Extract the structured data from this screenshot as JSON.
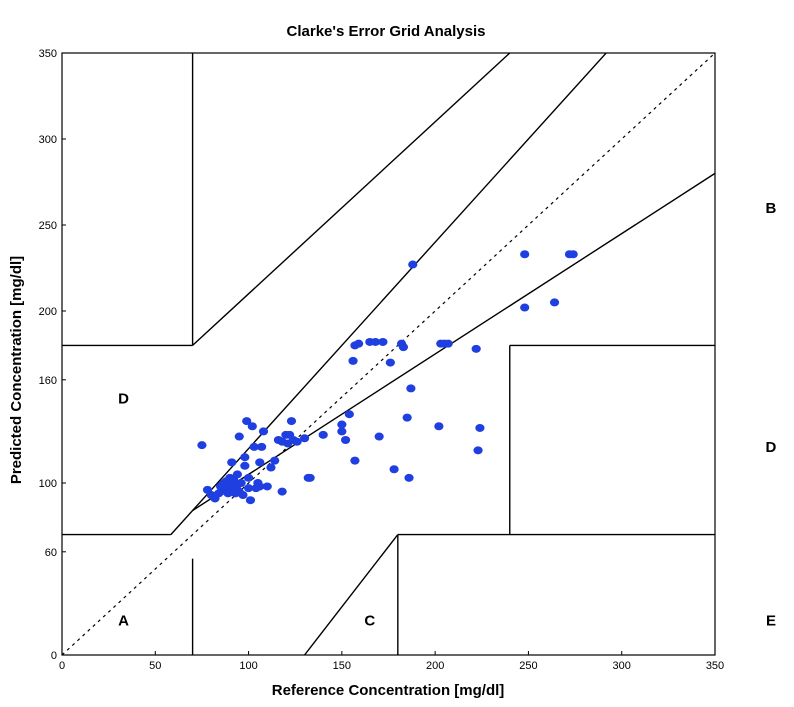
{
  "chart_data": {
    "type": "scatter",
    "title": "Clarke's Error Grid Analysis",
    "xlabel": "Reference Concentration [mg/dl]",
    "ylabel": "Predicted Concentration [mg/dl]",
    "xlim": [
      0,
      350
    ],
    "ylim": [
      0,
      350
    ],
    "x_ticks": [
      0,
      50,
      100,
      150,
      200,
      250,
      300,
      350
    ],
    "y_ticks": [
      0,
      60,
      100,
      160,
      200,
      250,
      300,
      350
    ],
    "y_tick_labels": [
      "0",
      "60",
      "100",
      "160",
      "200",
      "250",
      "300",
      "350"
    ],
    "grid": false,
    "marker_color": "#1f3fe0",
    "zone_labels": [
      {
        "text": "A",
        "x": 33,
        "y": 20
      },
      {
        "text": "B",
        "x": 380,
        "y": 260
      },
      {
        "text": "C",
        "x": 165,
        "y": 20
      },
      {
        "text": "D",
        "x": 33,
        "y": 149
      },
      {
        "text": "D",
        "x": 380,
        "y": 121
      },
      {
        "text": "E",
        "x": 380,
        "y": 20
      }
    ],
    "points": [
      [
        75,
        122
      ],
      [
        78,
        96
      ],
      [
        80,
        93
      ],
      [
        82,
        91
      ],
      [
        84,
        94
      ],
      [
        85,
        98
      ],
      [
        86,
        99
      ],
      [
        87,
        100
      ],
      [
        87,
        96
      ],
      [
        88,
        95
      ],
      [
        88,
        101
      ],
      [
        89,
        94
      ],
      [
        89,
        100
      ],
      [
        90,
        98
      ],
      [
        90,
        103
      ],
      [
        91,
        97
      ],
      [
        91,
        112
      ],
      [
        92,
        102
      ],
      [
        92,
        96
      ],
      [
        93,
        94
      ],
      [
        94,
        105
      ],
      [
        94,
        99
      ],
      [
        95,
        95
      ],
      [
        95,
        127
      ],
      [
        96,
        100
      ],
      [
        97,
        93
      ],
      [
        98,
        115
      ],
      [
        98,
        110
      ],
      [
        99,
        136
      ],
      [
        100,
        103
      ],
      [
        100,
        97
      ],
      [
        101,
        90
      ],
      [
        102,
        133
      ],
      [
        103,
        121
      ],
      [
        104,
        97
      ],
      [
        105,
        100
      ],
      [
        106,
        98
      ],
      [
        106,
        112
      ],
      [
        107,
        121
      ],
      [
        108,
        130
      ],
      [
        110,
        98
      ],
      [
        112,
        109
      ],
      [
        114,
        113
      ],
      [
        116,
        125
      ],
      [
        118,
        124
      ],
      [
        118,
        95
      ],
      [
        120,
        128
      ],
      [
        121,
        123
      ],
      [
        122,
        128
      ],
      [
        123,
        136
      ],
      [
        124,
        125
      ],
      [
        126,
        124
      ],
      [
        130,
        126
      ],
      [
        132,
        103
      ],
      [
        133,
        103
      ],
      [
        140,
        128
      ],
      [
        150,
        130
      ],
      [
        150,
        134
      ],
      [
        152,
        125
      ],
      [
        154,
        140
      ],
      [
        156,
        171
      ],
      [
        157,
        113
      ],
      [
        157,
        180
      ],
      [
        159,
        181
      ],
      [
        165,
        182
      ],
      [
        168,
        182
      ],
      [
        170,
        127
      ],
      [
        172,
        182
      ],
      [
        176,
        170
      ],
      [
        178,
        108
      ],
      [
        182,
        181
      ],
      [
        183,
        179
      ],
      [
        185,
        138
      ],
      [
        186,
        103
      ],
      [
        187,
        155
      ],
      [
        188,
        227
      ],
      [
        202,
        133
      ],
      [
        203,
        181
      ],
      [
        205,
        181
      ],
      [
        207,
        181
      ],
      [
        222,
        178
      ],
      [
        223,
        119
      ],
      [
        224,
        132
      ],
      [
        248,
        233
      ],
      [
        248,
        202
      ],
      [
        264,
        205
      ],
      [
        272,
        233
      ],
      [
        274,
        233
      ]
    ]
  }
}
